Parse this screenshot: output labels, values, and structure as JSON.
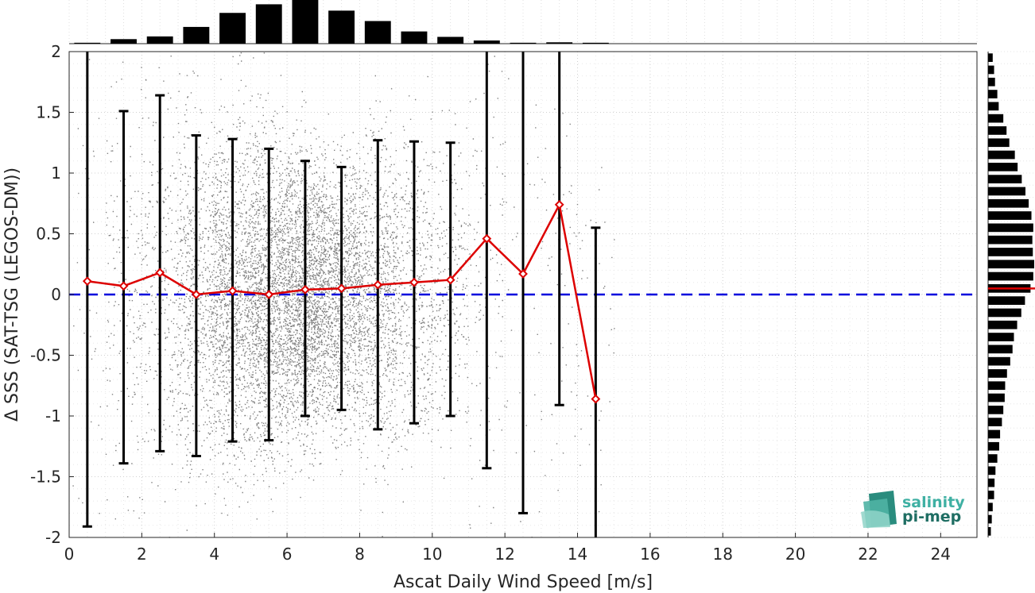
{
  "chart_data": {
    "type": "scatter",
    "xlabel": "Ascat Daily Wind Speed [m/s]",
    "ylabel": "Δ SSS (SAT-TSG (LEGOS-DM))",
    "xlim": [
      0,
      25
    ],
    "ylim": [
      -2,
      2
    ],
    "x_ticks": [
      0,
      2,
      4,
      6,
      8,
      10,
      12,
      14,
      16,
      18,
      20,
      22,
      24
    ],
    "y_ticks": [
      2,
      1.5,
      1,
      0.5,
      0,
      -0.5,
      -1,
      -1.5,
      -2
    ],
    "y_tick_labels": [
      "2",
      "1.5",
      "1",
      "0.5",
      "0",
      "-0.5",
      "-1",
      "-1.5",
      "-2"
    ],
    "grid": true,
    "reference_line": {
      "y": 0,
      "color": "#0000dd",
      "style": "dashed"
    },
    "scatter_color": "#808080",
    "binned_mean": {
      "color": "#dd0000",
      "x": [
        0.5,
        1.5,
        2.5,
        3.5,
        4.5,
        5.5,
        6.5,
        7.5,
        8.5,
        9.5,
        10.5,
        11.5,
        12.5,
        13.5,
        14.5
      ],
      "mean": [
        0.11,
        0.07,
        0.18,
        0.0,
        0.03,
        0.0,
        0.04,
        0.05,
        0.08,
        0.1,
        0.12,
        0.46,
        0.17,
        0.74,
        -0.86
      ],
      "lower": [
        -1.91,
        -1.39,
        -1.29,
        -1.33,
        -1.21,
        -1.2,
        -1.0,
        -0.95,
        -1.11,
        -1.06,
        -1.0,
        -1.43,
        -1.8,
        -0.91,
        -2.0
      ],
      "upper": [
        2.0,
        1.51,
        1.64,
        1.31,
        1.28,
        1.2,
        1.1,
        1.05,
        1.27,
        1.26,
        1.25,
        2.0,
        2.0,
        2.0,
        0.55
      ]
    },
    "top_histogram": {
      "bin_centers": [
        0.5,
        1.5,
        2.5,
        3.5,
        4.5,
        5.5,
        6.5,
        7.5,
        8.5,
        9.5,
        10.5,
        11.5,
        12.5,
        13.5,
        14.5
      ],
      "relative_heights": [
        0.02,
        0.1,
        0.16,
        0.37,
        0.68,
        0.87,
        1.0,
        0.73,
        0.5,
        0.27,
        0.15,
        0.07,
        0.02,
        0.03,
        0.02
      ]
    },
    "right_histogram": {
      "bin_edges_start": -2.0,
      "bin_width": 0.1,
      "relative_widths": [
        0.06,
        0.08,
        0.1,
        0.13,
        0.14,
        0.16,
        0.2,
        0.24,
        0.26,
        0.3,
        0.33,
        0.36,
        0.37,
        0.41,
        0.48,
        0.53,
        0.56,
        0.63,
        0.72,
        0.8,
        0.92,
        0.98,
        1.0,
        0.97,
        0.96,
        0.98,
        0.94,
        0.88,
        0.81,
        0.73,
        0.64,
        0.58,
        0.46,
        0.4,
        0.33,
        0.23,
        0.2,
        0.15,
        0.13,
        0.1
      ],
      "mean_line": {
        "y": 0.05,
        "color": "#dd0000"
      }
    }
  },
  "logo": {
    "line1": "salinity",
    "line2": "pi-mep"
  }
}
